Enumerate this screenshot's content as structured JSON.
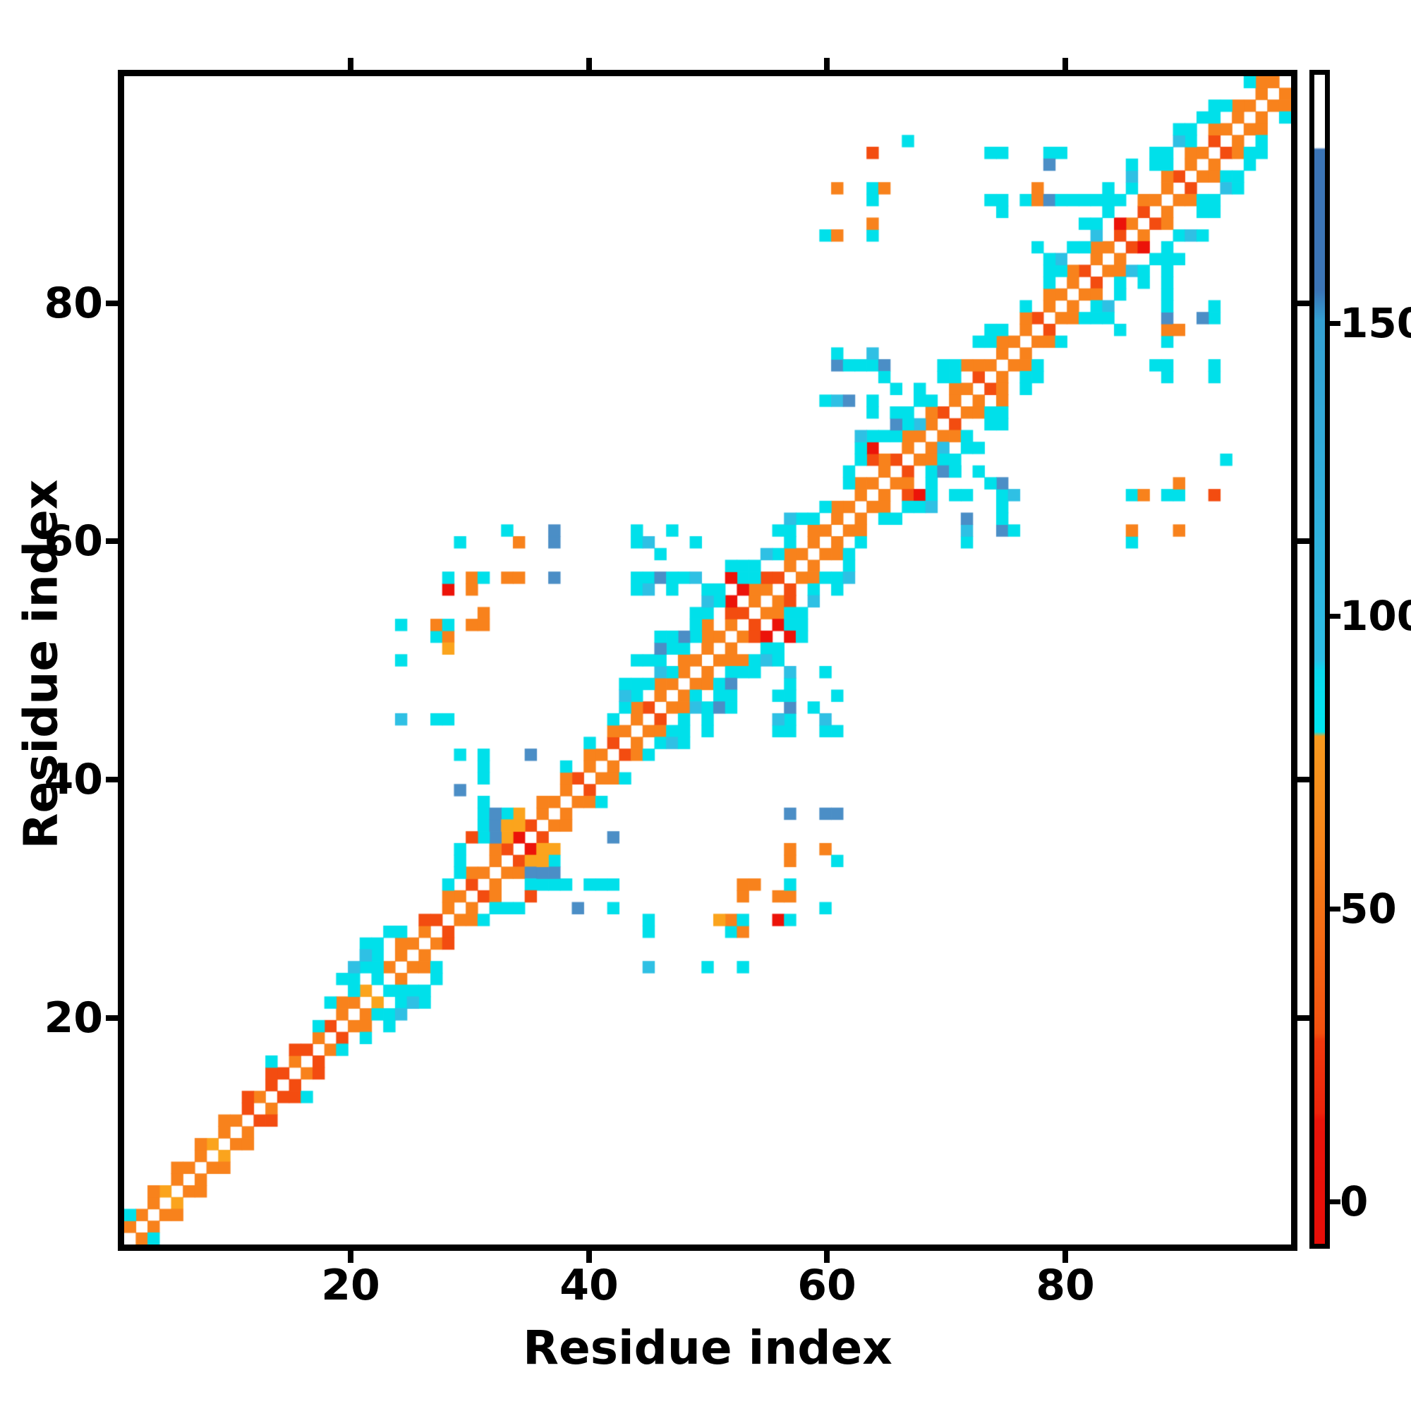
{
  "figure": {
    "background": "#ffffff",
    "frame_color": "#000000"
  },
  "axes": {
    "x_title": "Residue index",
    "y_title": "Residue index",
    "x_ticks": [
      {
        "value": 20,
        "label": "20"
      },
      {
        "value": 40,
        "label": "40"
      },
      {
        "value": 60,
        "label": "60"
      },
      {
        "value": 80,
        "label": "80"
      }
    ],
    "y_ticks": [
      {
        "value": 20,
        "label": "20"
      },
      {
        "value": 40,
        "label": "40"
      },
      {
        "value": 60,
        "label": "60"
      },
      {
        "value": 80,
        "label": "80"
      }
    ]
  },
  "colorbar": {
    "ticks": [
      {
        "value": 150,
        "label": "150"
      },
      {
        "value": 100,
        "label": "100"
      },
      {
        "value": 50,
        "label": "50"
      },
      {
        "value": 0,
        "label": "0"
      }
    ],
    "gradient_stops": [
      [
        0.0,
        "#ffffff"
      ],
      [
        0.062,
        "#ffffff"
      ],
      [
        0.064,
        "#3b74b6"
      ],
      [
        0.185,
        "#3b74b6"
      ],
      [
        0.21,
        "#34a0d2"
      ],
      [
        0.5,
        "#2cbde4"
      ],
      [
        0.51,
        "#0bd8ec"
      ],
      [
        0.562,
        "#00e5ef"
      ],
      [
        0.566,
        "#f89a1e"
      ],
      [
        0.65,
        "#f8871a"
      ],
      [
        0.82,
        "#f3500f"
      ],
      [
        0.826,
        "#f0390d"
      ],
      [
        0.888,
        "#ee230b"
      ],
      [
        0.894,
        "#eb140a"
      ],
      [
        1.0,
        "#e60d08"
      ]
    ]
  },
  "chart_data": {
    "type": "heatmap",
    "title": "",
    "xlabel": "Residue index",
    "ylabel": "Residue index",
    "grid_size": 99,
    "x_range": [
      1,
      99
    ],
    "y_range": [
      1,
      99
    ],
    "value_scale": {
      "min": 0,
      "max": 190,
      "colorbar_tick_values": [
        0,
        50,
        100,
        150
      ]
    },
    "legend": "colorbar right",
    "grid": false,
    "symmetric": true,
    "diagonal_is_empty": true,
    "palette": {
      "o": "#f8821c",
      "O": "#fba41d",
      "r": "#f34c10",
      "R": "#ec1309",
      "c": "#00e0ea",
      "b": "#2fc0e4",
      "B": "#4b8ec6"
    },
    "diagonal_bands": {
      "1": "oooOoooOoororrororooOcoooorooroorRrooorooroorooooooorooroooooooooroooroorooooroooroororoorooroooooo",
      "2": "c.o.o.o.o.r.r.r.c.oc.c.o.r.o.o.oOO.o.o.o.o.o.oco.o.r.or.o.o.o.o.o.obo.o.o.o.o.o.o.o.R.o.o.o.o.o.o",
      "3": "............c....c.ccc.c...cc..B.O...c.c.ccccb.cco.RRc.cc.cc.c.r.cc.c.co.cc.c.cc.cb.....c.c.cc.c",
      "4": "..................c.c.c.....c.c.c.........bc.ccBccc.ccb.cc...ccRc.cc.cc.cc....cbc.cccc.ccbccc..",
      "5": "....................c.......c.c...........c.cBc.cbcRc..cb.....cc.c.c.c........c..c.c.b.c.c....",
      "6": "...........................................c.c...c.c..........b....................c.c......."
    },
    "spots": [
      [
        20,
        24,
        "b"
      ],
      [
        21,
        25,
        "b"
      ],
      [
        22,
        26,
        "c"
      ],
      [
        24,
        45,
        "b"
      ],
      [
        27,
        45,
        "c"
      ],
      [
        28,
        45,
        "c"
      ],
      [
        24,
        50,
        "c"
      ],
      [
        24,
        53,
        "c"
      ],
      [
        27,
        52,
        "c"
      ],
      [
        28,
        52,
        "o"
      ],
      [
        28,
        51,
        "O"
      ],
      [
        27,
        53,
        "o"
      ],
      [
        28,
        53,
        "c"
      ],
      [
        30,
        53,
        "o"
      ],
      [
        31,
        53,
        "o"
      ],
      [
        31,
        54,
        "o"
      ],
      [
        30,
        56,
        "o"
      ],
      [
        28,
        56,
        "R"
      ],
      [
        28,
        57,
        "c"
      ],
      [
        30,
        57,
        "o"
      ],
      [
        31,
        57,
        "c"
      ],
      [
        33,
        57,
        "o"
      ],
      [
        34,
        57,
        "o"
      ],
      [
        37,
        57,
        "B"
      ],
      [
        34,
        60,
        "o"
      ],
      [
        37,
        60,
        "B"
      ],
      [
        37,
        61,
        "B"
      ],
      [
        29,
        60,
        "c"
      ],
      [
        33,
        61,
        "c"
      ],
      [
        31,
        37,
        "c"
      ],
      [
        31,
        38,
        "c"
      ],
      [
        31,
        40,
        "c"
      ],
      [
        31,
        41,
        "c"
      ],
      [
        32,
        36,
        "B"
      ],
      [
        32,
        37,
        "B"
      ],
      [
        33,
        36,
        "O"
      ],
      [
        34,
        36,
        "O"
      ],
      [
        30,
        35,
        "r"
      ],
      [
        35,
        42,
        "B"
      ],
      [
        29,
        42,
        "c"
      ],
      [
        31,
        42,
        "c"
      ],
      [
        29,
        39,
        "B"
      ],
      [
        44,
        57,
        "c"
      ],
      [
        45,
        57,
        "c"
      ],
      [
        46,
        57,
        "B"
      ],
      [
        47,
        57,
        "c"
      ],
      [
        48,
        57,
        "c"
      ],
      [
        49,
        57,
        "b"
      ],
      [
        44,
        56,
        "c"
      ],
      [
        45,
        56,
        "b"
      ],
      [
        47,
        56,
        "c"
      ],
      [
        46,
        59,
        "c"
      ],
      [
        44,
        60,
        "c"
      ],
      [
        45,
        60,
        "b"
      ],
      [
        49,
        60,
        "c"
      ],
      [
        44,
        61,
        "c"
      ],
      [
        47,
        61,
        "c"
      ],
      [
        60,
        72,
        "c"
      ],
      [
        61,
        72,
        "b"
      ],
      [
        62,
        72,
        "B"
      ],
      [
        64,
        71,
        "c"
      ],
      [
        64,
        72,
        "c"
      ],
      [
        61,
        75,
        "B"
      ],
      [
        61,
        76,
        "c"
      ],
      [
        62,
        75,
        "c"
      ],
      [
        63,
        75,
        "c"
      ],
      [
        64,
        75,
        "c"
      ],
      [
        64,
        76,
        "b"
      ],
      [
        65,
        75,
        "B"
      ],
      [
        65,
        74,
        "c"
      ],
      [
        66,
        70,
        "B"
      ],
      [
        66,
        71,
        "c"
      ],
      [
        66,
        73,
        "c"
      ],
      [
        60,
        86,
        "c"
      ],
      [
        61,
        86,
        "o"
      ],
      [
        64,
        86,
        "c"
      ],
      [
        64,
        87,
        "o"
      ],
      [
        61,
        90,
        "o"
      ],
      [
        64,
        89,
        "c"
      ],
      [
        64,
        90,
        "c"
      ],
      [
        65,
        90,
        "o"
      ],
      [
        64,
        93,
        "r"
      ],
      [
        67,
        94,
        "c"
      ],
      [
        74,
        93,
        "c"
      ],
      [
        75,
        93,
        "c"
      ],
      [
        79,
        93,
        "c"
      ],
      [
        80,
        93,
        "c"
      ],
      [
        79,
        92,
        "B"
      ],
      [
        75,
        88,
        "c"
      ],
      [
        75,
        89,
        "c"
      ],
      [
        77,
        89,
        "c"
      ],
      [
        78,
        89,
        "o"
      ],
      [
        79,
        89,
        "B"
      ],
      [
        80,
        89,
        "c"
      ],
      [
        81,
        89,
        "c"
      ],
      [
        82,
        89,
        "c"
      ],
      [
        83,
        89,
        "c"
      ],
      [
        78,
        90,
        "o"
      ],
      [
        74,
        89,
        "c"
      ],
      [
        78,
        85,
        "c"
      ]
    ]
  }
}
